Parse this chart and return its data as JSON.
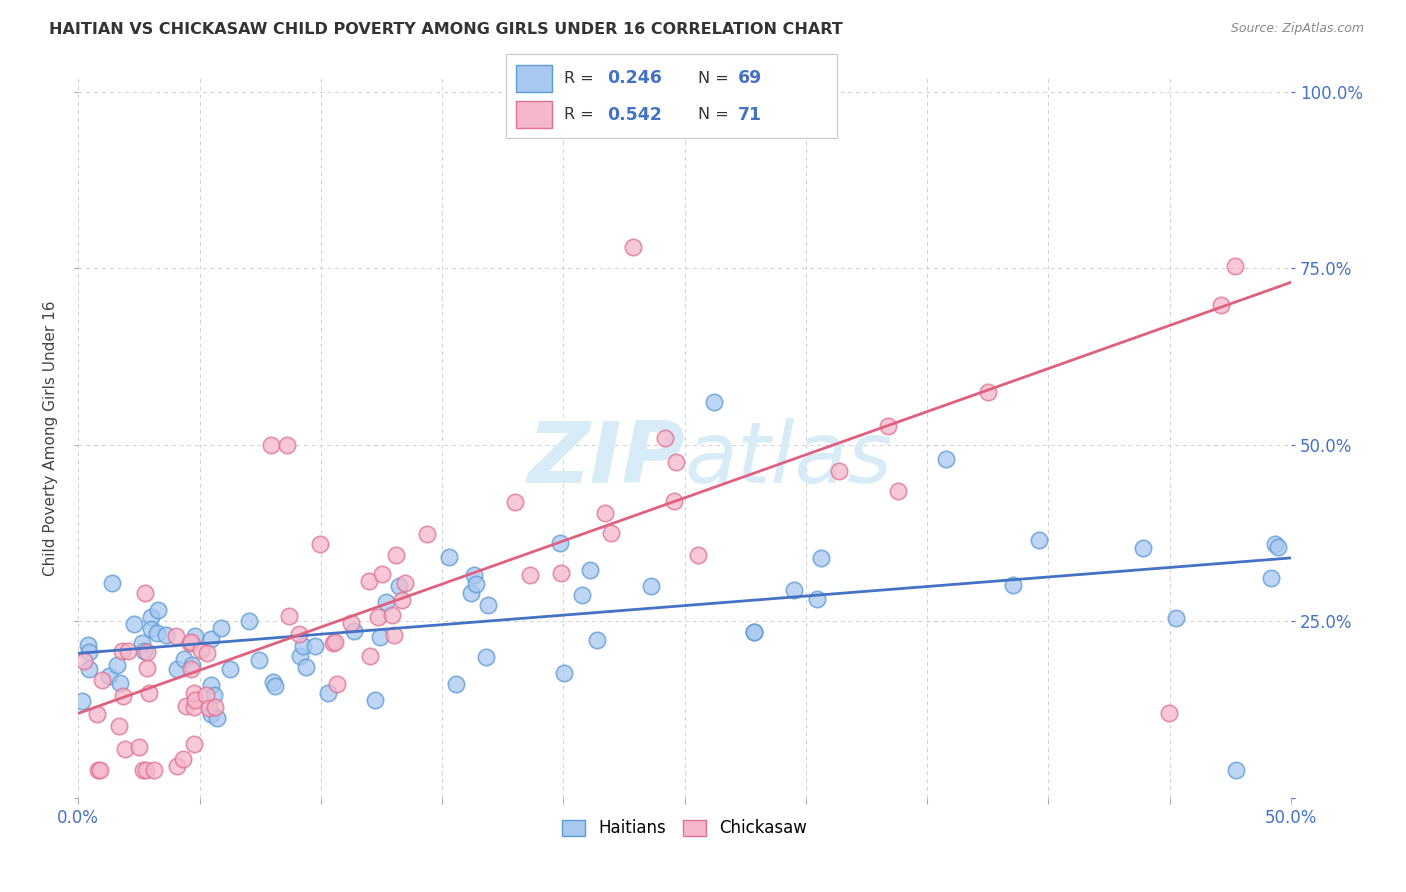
{
  "title": "HAITIAN VS CHICKASAW CHILD POVERTY AMONG GIRLS UNDER 16 CORRELATION CHART",
  "source": "Source: ZipAtlas.com",
  "ylabel": "Child Poverty Among Girls Under 16",
  "xlim": [
    0,
    0.5
  ],
  "ylim": [
    0,
    1.0
  ],
  "legend_r_blue": "0.246",
  "legend_n_blue": "69",
  "legend_r_pink": "0.542",
  "legend_n_pink": "71",
  "blue_face_color": "#A8C8F0",
  "pink_face_color": "#F5B8CB",
  "blue_edge_color": "#5B9BD5",
  "pink_edge_color": "#E07090",
  "blue_line_color": "#4472C4",
  "pink_line_color": "#E06080",
  "blue_label": "Haitians",
  "pink_label": "Chickasaw",
  "watermark_color": "#D8ECF8",
  "background_color": "#FFFFFF",
  "grid_color": "#D0D0D0",
  "tick_color": "#4472C4",
  "title_color": "#333333",
  "source_color": "#888888"
}
